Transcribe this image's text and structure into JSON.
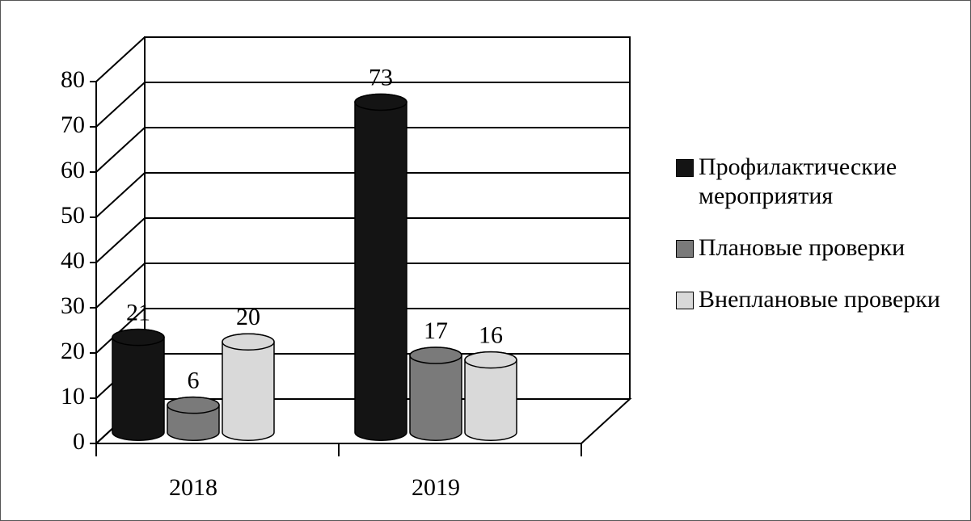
{
  "chart_data": {
    "type": "bar3d",
    "categories": [
      "2018",
      "2019"
    ],
    "series": [
      {
        "name": "Профилактические мероприятия",
        "color": "#141414",
        "values": [
          21,
          73
        ]
      },
      {
        "name": "Плановые проверки",
        "color": "#7a7a7a",
        "values": [
          6,
          17
        ]
      },
      {
        "name": "Внеплановые проверки",
        "color": "#d9d9d9",
        "values": [
          20,
          16
        ]
      }
    ],
    "ylim": [
      0,
      80
    ],
    "yticks": [
      0,
      10,
      20,
      30,
      40,
      50,
      60,
      70,
      80
    ],
    "grid": true,
    "legend": "right"
  }
}
